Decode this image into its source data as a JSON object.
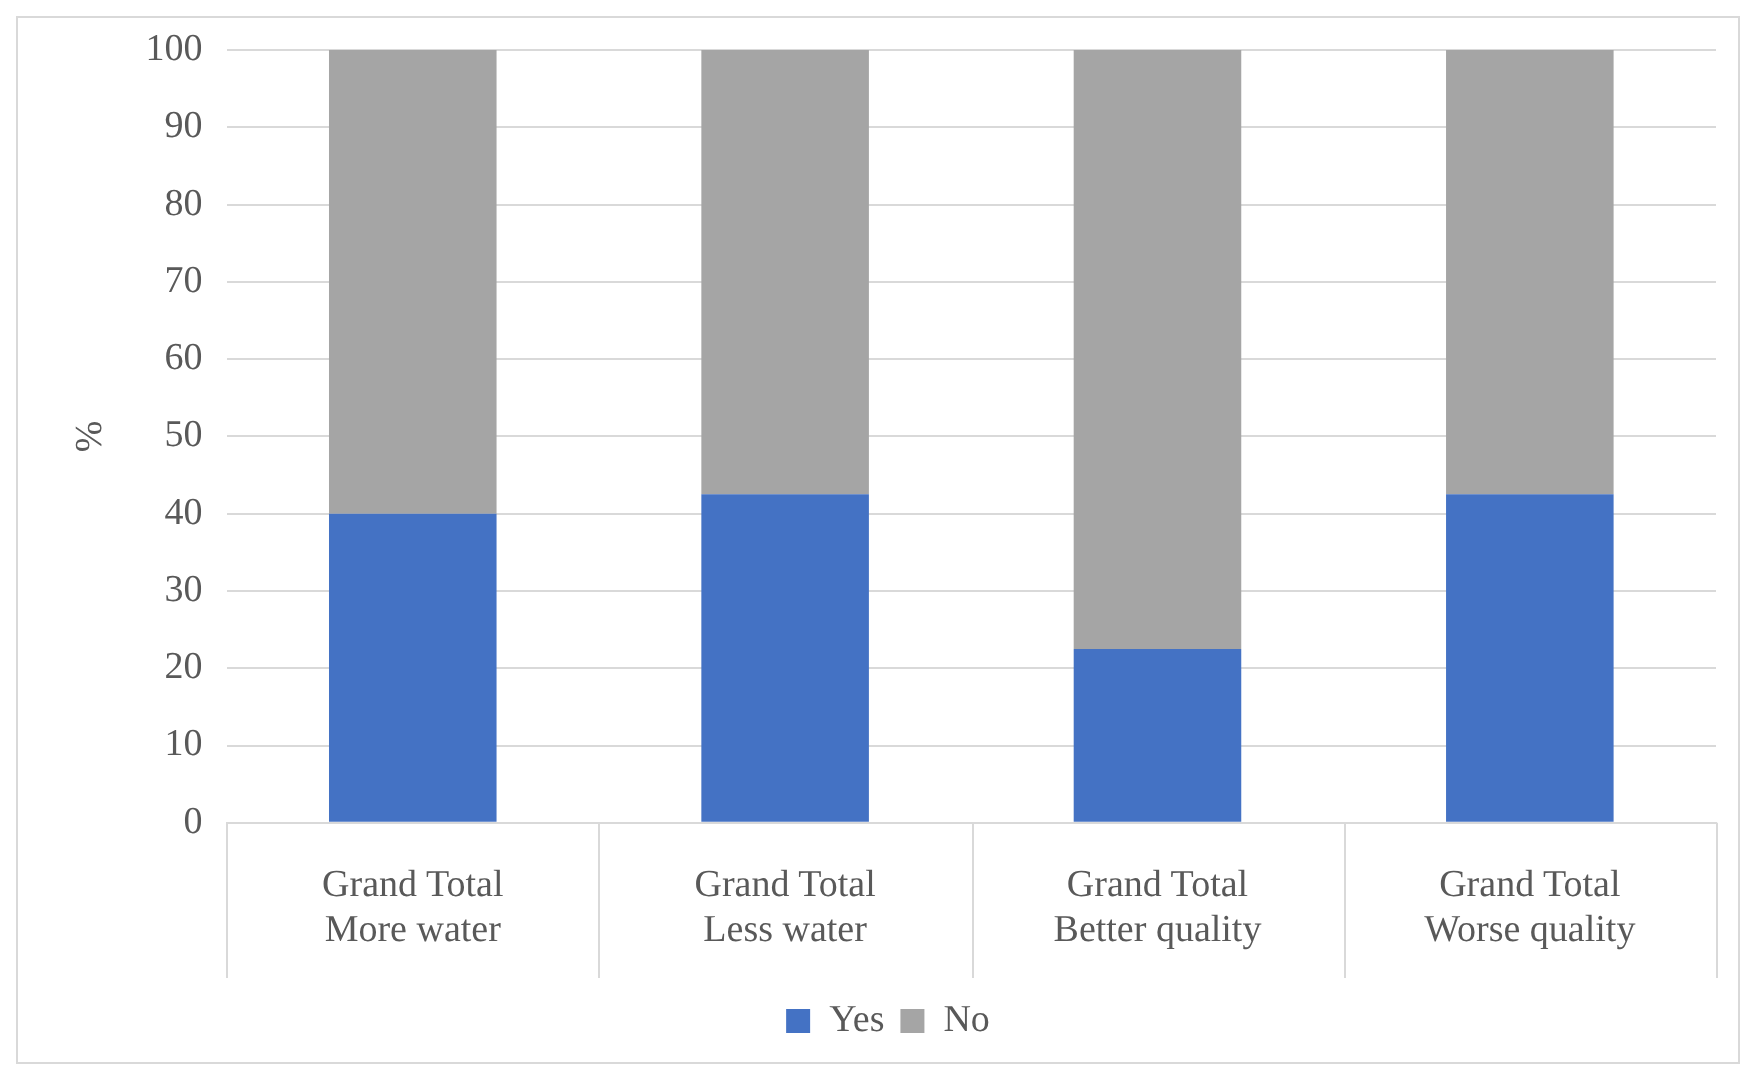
{
  "chart_data": {
    "type": "bar",
    "stacked": true,
    "ylabel": "%",
    "categories": [
      "Grand Total\nMore water",
      "Grand Total\nLess water",
      "Grand Total\nBetter quality",
      "Grand Total\nWorse quality"
    ],
    "series": [
      {
        "name": "Yes",
        "color": "#4472c4",
        "values": [
          40,
          42.5,
          22.5,
          42.5
        ]
      },
      {
        "name": "No",
        "color": "#a5a5a5",
        "values": [
          60,
          57.5,
          77.5,
          57.5
        ]
      }
    ],
    "ylim": [
      0,
      100
    ],
    "yticks": [
      0,
      10,
      20,
      30,
      40,
      50,
      60,
      70,
      80,
      90,
      100
    ],
    "grid": "y",
    "legend": "bottom"
  }
}
